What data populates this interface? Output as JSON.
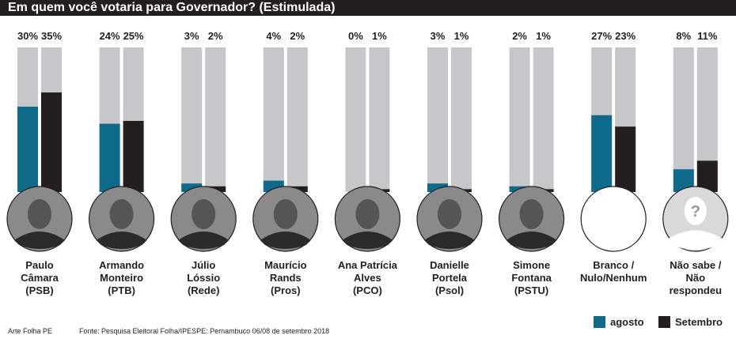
{
  "chart_data": {
    "type": "bar",
    "title": "Em quem você votaria para Governador? (Estimulada)",
    "categories": [
      [
        "Paulo",
        "Câmara",
        "(PSB)"
      ],
      [
        "Armando",
        "Monteiro",
        "(PTB)"
      ],
      [
        "Júlio",
        "Lóssio",
        "(Rede)"
      ],
      [
        "Maurício",
        "Rands",
        "(Pros)"
      ],
      [
        "Ana Patrícia",
        "Alves",
        "(PCO)"
      ],
      [
        "Danielle",
        "Portela",
        "(Psol)"
      ],
      [
        "Simone",
        "Fontana",
        "(PSTU)"
      ],
      [
        "Branco /",
        "Nulo/Nenhum"
      ],
      [
        "Não sabe /",
        "Não",
        "respondeu"
      ]
    ],
    "series": [
      {
        "name": "agosto",
        "color": "#0e6b8c",
        "values": [
          30,
          24,
          3,
          4,
          0,
          3,
          2,
          27,
          8
        ]
      },
      {
        "name": "Setembro",
        "color": "#231f20",
        "values": [
          35,
          25,
          2,
          2,
          1,
          1,
          1,
          23,
          11
        ]
      }
    ],
    "photo": [
      "person",
      "person",
      "person",
      "person",
      "person",
      "person",
      "person",
      "none",
      "unknown"
    ],
    "legend": "bottom-right",
    "unit": "%"
  },
  "footer": {
    "credit": "Arte Folha PE",
    "source": "Fonte: Pesquisa Eleitoral Folha/IPESPE: Pernambuco 06/08 de setembro 2018"
  }
}
